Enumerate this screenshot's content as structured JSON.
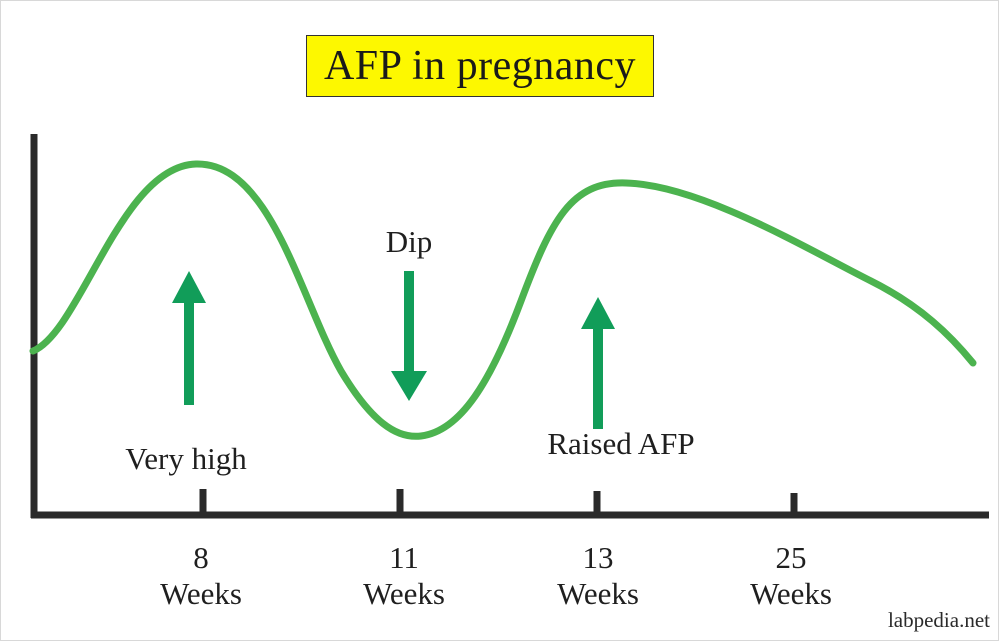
{
  "title": "AFP in pregnancy",
  "colors": {
    "title_bg": "#fdf800",
    "curve": "#4cb34f",
    "arrow": "#119d59",
    "axis": "#2a2a2a"
  },
  "annotations": {
    "very_high": "Very high",
    "dip": "Dip",
    "raised": "Raised AFP"
  },
  "x_axis": {
    "ticks": [
      {
        "value": "8",
        "unit": "Weeks"
      },
      {
        "value": "11",
        "unit": "Weeks"
      },
      {
        "value": "13",
        "unit": "Weeks"
      },
      {
        "value": "25",
        "unit": "Weeks"
      }
    ]
  },
  "arrows": [
    {
      "name": "very-high-arrow",
      "direction": "up"
    },
    {
      "name": "dip-arrow",
      "direction": "down"
    },
    {
      "name": "raised-afp-arrow",
      "direction": "up"
    }
  ],
  "watermark": "labpedia.net"
}
